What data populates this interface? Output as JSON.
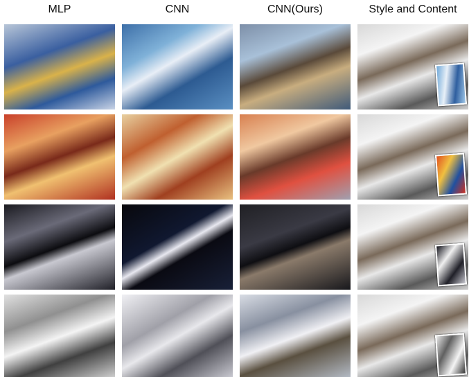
{
  "columns": [
    "MLP",
    "CNN",
    "CNN(Ours)",
    "Style and Content"
  ]
}
